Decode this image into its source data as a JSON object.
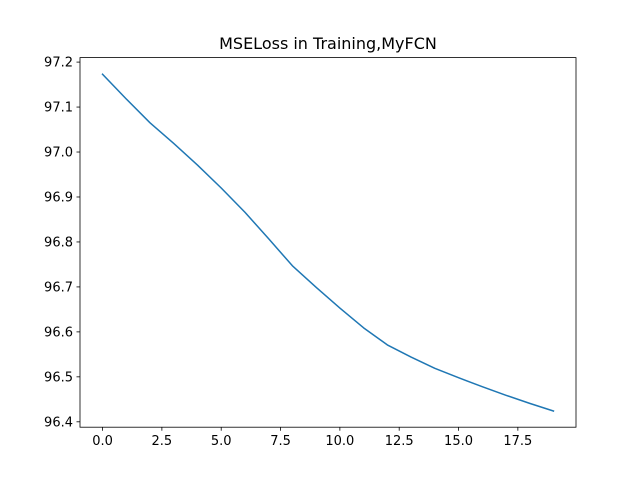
{
  "chart_data": {
    "type": "line",
    "title": "MSELoss in Training,MyFCN",
    "xlabel": "",
    "ylabel": "",
    "xlim": [
      -0.95,
      19.95
    ],
    "ylim": [
      96.388,
      97.21
    ],
    "xticks": [
      0,
      2.5,
      5,
      7.5,
      10,
      12.5,
      15,
      17.5
    ],
    "xtick_labels": [
      "0.0",
      "2.5",
      "5.0",
      "7.5",
      "10.0",
      "12.5",
      "15.0",
      "17.5"
    ],
    "yticks": [
      96.4,
      96.5,
      96.6,
      96.7,
      96.8,
      96.9,
      97.0,
      97.1,
      97.2
    ],
    "ytick_labels": [
      "96.4",
      "96.5",
      "96.6",
      "96.7",
      "96.8",
      "96.9",
      "97.0",
      "97.1",
      "97.2"
    ],
    "grid": false,
    "legend": "none",
    "series": [
      {
        "color": "#1f77b4",
        "x": [
          0,
          1,
          2,
          3,
          4,
          5,
          6,
          7,
          8,
          9,
          10,
          11,
          12,
          13,
          14,
          15,
          16,
          17,
          18,
          19
        ],
        "y": [
          97.173,
          97.118,
          97.065,
          97.019,
          96.971,
          96.92,
          96.866,
          96.807,
          96.747,
          96.699,
          96.653,
          96.609,
          96.571,
          96.544,
          96.519,
          96.498,
          96.478,
          96.459,
          96.441,
          96.424
        ]
      }
    ]
  }
}
